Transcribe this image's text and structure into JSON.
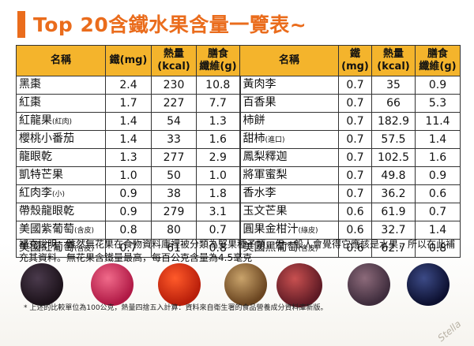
{
  "title": "Top 20含鐵水果含量一覽表~",
  "headers": {
    "name": "名稱",
    "iron": "鐵(mg)",
    "kcal_1": "熱量",
    "kcal_2": "(kcal)",
    "fiber_1": "膳食",
    "fiber_2": "纖維(g)",
    "iron_r1": "鐵",
    "iron_r2": "(mg)"
  },
  "rows": [
    {
      "left": {
        "name": "黑棗",
        "note": "",
        "iron": "2.4",
        "kcal": "230",
        "fiber": "10.8"
      },
      "right": {
        "name": "黃肉李",
        "note": "",
        "iron": "0.7",
        "kcal": "35",
        "fiber": "0.9"
      }
    },
    {
      "left": {
        "name": "紅棗",
        "note": "",
        "iron": "1.7",
        "kcal": "227",
        "fiber": "7.7"
      },
      "right": {
        "name": "百香果",
        "note": "",
        "iron": "0.7",
        "kcal": "66",
        "fiber": "5.3"
      }
    },
    {
      "left": {
        "name": "紅龍果",
        "note": "(紅肉)",
        "iron": "1.4",
        "kcal": "54",
        "fiber": "1.3"
      },
      "right": {
        "name": "柿餅",
        "note": "",
        "iron": "0.7",
        "kcal": "182.9",
        "fiber": "11.4"
      }
    },
    {
      "left": {
        "name": "櫻桃小番茄",
        "note": "",
        "iron": "1.4",
        "kcal": "33",
        "fiber": "1.6"
      },
      "right": {
        "name": "甜柿",
        "note": "(進口)",
        "iron": "0.7",
        "kcal": "57.5",
        "fiber": "1.4"
      }
    },
    {
      "left": {
        "name": "龍眼乾",
        "note": "",
        "iron": "1.3",
        "kcal": "277",
        "fiber": "2.9"
      },
      "right": {
        "name": "鳳梨釋迦",
        "note": "",
        "iron": "0.7",
        "kcal": "102.5",
        "fiber": "1.6"
      }
    },
    {
      "left": {
        "name": "凱特芒果",
        "note": "",
        "iron": "1.0",
        "kcal": "50",
        "fiber": "1.0"
      },
      "right": {
        "name": "將軍蜜梨",
        "note": "",
        "iron": "0.7",
        "kcal": "49.8",
        "fiber": "0.9"
      }
    },
    {
      "left": {
        "name": "紅肉李",
        "note": "(小)",
        "iron": "0.9",
        "kcal": "38",
        "fiber": "1.8"
      },
      "right": {
        "name": "香水李",
        "note": "",
        "iron": "0.7",
        "kcal": "36.2",
        "fiber": "0.6"
      }
    },
    {
      "left": {
        "name": "帶殼龍眼乾",
        "note": "",
        "iron": "0.9",
        "kcal": "279",
        "fiber": "3.1"
      },
      "right": {
        "name": "玉文芒果",
        "note": "",
        "iron": "0.6",
        "kcal": "61.9",
        "fiber": "0.7"
      }
    },
    {
      "left": {
        "name": "美國紫葡萄",
        "note": "(含皮)",
        "iron": "0.8",
        "kcal": "80",
        "fiber": "0.7"
      },
      "right": {
        "name": "圓果金柑汁",
        "note": "(綠皮)",
        "iron": "0.6",
        "kcal": "32.7",
        "fiber": "1.4"
      }
    },
    {
      "left": {
        "name": "美國紅葡萄",
        "note": "(含皮)",
        "iron": "0.7",
        "kcal": "61",
        "fiber": "0.8"
      },
      "right": {
        "name": "美國黑葡萄",
        "note": "(含皮)",
        "iron": "0.6",
        "kcal": "62.7",
        "fiber": "0.8"
      }
    }
  ],
  "supplement": "補充說明：雖然無花果在食物資料庫裡被分類為堅果種子類，但一般人會覺得它應該是水果，所以在此補充其資料。無花果含鐵量最高，每百公克含量為4.5毫克",
  "footnote": "* 上述的比較單位為100公克，熱量四捨五入計算：資料來自衛生署的食品營養成分資料庫新版。",
  "watermark": "Stella",
  "colors": {
    "title": "#ea6c1c",
    "header_bg": "#f4b42c"
  }
}
